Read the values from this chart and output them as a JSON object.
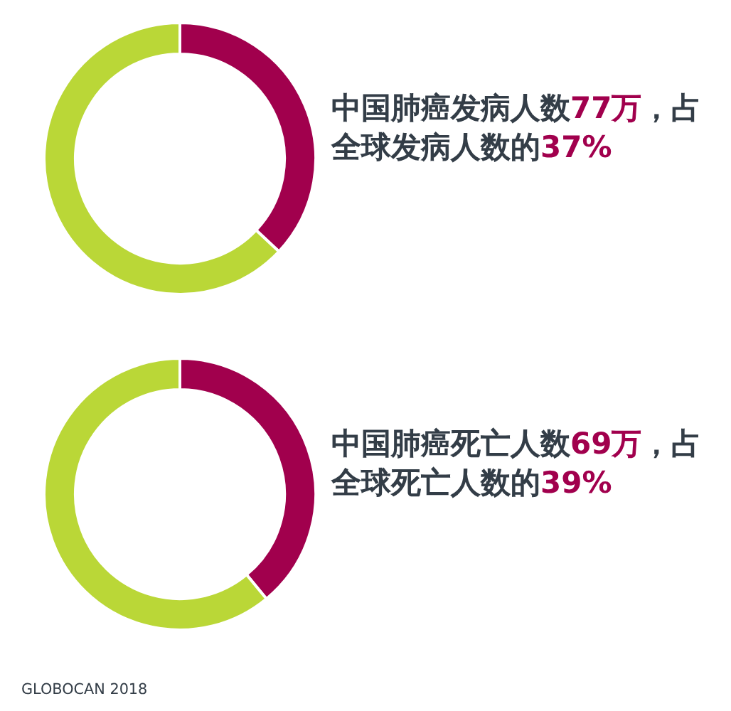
{
  "chart_data": [
    {
      "type": "donut",
      "categories": [
        null,
        null
      ],
      "values": [
        37,
        63
      ],
      "colors": [
        "#a1004d",
        "#bad737"
      ],
      "annotations": [
        "中国肺癌发病人数77万，占全球发病人数的37%"
      ]
    },
    {
      "type": "donut",
      "categories": [
        null,
        null
      ],
      "values": [
        39,
        61
      ],
      "colors": [
        "#a1004d",
        "#bad737"
      ],
      "annotations": [
        "中国肺癌死亡人数69万，占全球死亡人数的39%",
        "GLOBOCAN 2018"
      ]
    }
  ]
}
